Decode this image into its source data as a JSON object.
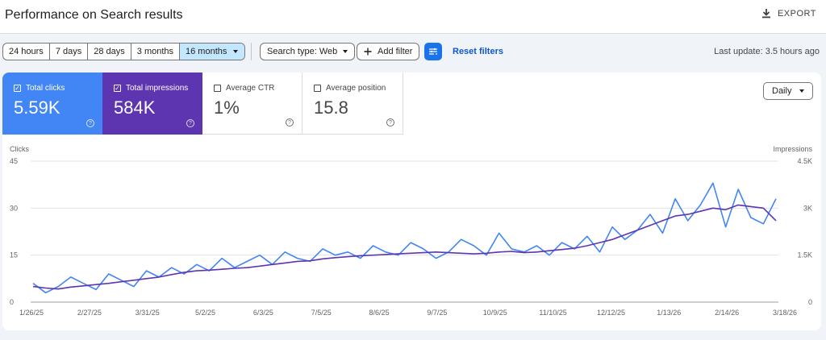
{
  "header": {
    "title": "Performance on Search results",
    "export_label": "EXPORT"
  },
  "date_range": {
    "options": [
      "24 hours",
      "7 days",
      "28 days",
      "3 months",
      "16 months"
    ],
    "selected": "16 months"
  },
  "filters": {
    "search_type": "Search type: Web",
    "add_filter": "Add filter",
    "reset": "Reset filters"
  },
  "last_update": "Last update: 3.5 hours ago",
  "metrics": [
    {
      "label": "Total clicks",
      "value": "5.59K",
      "checked": true,
      "color": "#4285f4"
    },
    {
      "label": "Total impressions",
      "value": "584K",
      "checked": true,
      "color": "#5e35b1"
    },
    {
      "label": "Average CTR",
      "value": "1%",
      "checked": false
    },
    {
      "label": "Average position",
      "value": "15.8",
      "checked": false
    }
  ],
  "granularity": "Daily",
  "chart_data": {
    "type": "line",
    "left_axis": {
      "title": "Clicks",
      "ticks": [
        "45",
        "30",
        "15",
        "0"
      ],
      "range": [
        0,
        45
      ]
    },
    "right_axis": {
      "title": "Impressions",
      "ticks": [
        "4.5K",
        "3K",
        "1.5K",
        "0"
      ],
      "range": [
        0,
        4500
      ]
    },
    "x_labels": [
      "1/26/25",
      "2/27/25",
      "3/31/25",
      "5/2/25",
      "6/3/25",
      "7/5/25",
      "8/6/25",
      "9/7/25",
      "10/9/25",
      "11/10/25",
      "12/12/25",
      "1/13/26",
      "2/14/26",
      "3/18/26"
    ],
    "grid": true,
    "series": [
      {
        "name": "Total clicks",
        "axis": "left",
        "color": "#4285f4",
        "values": [
          6,
          3,
          5,
          8,
          6,
          4,
          9,
          7,
          5,
          10,
          8,
          11,
          9,
          12,
          10,
          14,
          11,
          13,
          15,
          12,
          16,
          14,
          13,
          17,
          15,
          16,
          14,
          18,
          16,
          15,
          19,
          17,
          14,
          16,
          20,
          18,
          15,
          22,
          17,
          16,
          18,
          15,
          19,
          17,
          21,
          16,
          24,
          20,
          23,
          28,
          22,
          33,
          26,
          31,
          38,
          24,
          36,
          27,
          25,
          33
        ]
      },
      {
        "name": "Total impressions",
        "axis": "right",
        "color": "#5e35b1",
        "values": [
          500,
          450,
          420,
          480,
          520,
          560,
          600,
          650,
          700,
          750,
          800,
          880,
          950,
          1000,
          1020,
          1050,
          1080,
          1100,
          1150,
          1200,
          1250,
          1300,
          1320,
          1380,
          1420,
          1450,
          1480,
          1500,
          1520,
          1540,
          1560,
          1580,
          1600,
          1580,
          1560,
          1540,
          1560,
          1600,
          1620,
          1580,
          1600,
          1640,
          1680,
          1720,
          1800,
          1900,
          2000,
          2150,
          2300,
          2450,
          2600,
          2750,
          2800,
          2900,
          3000,
          2950,
          3100,
          3050,
          3000,
          2600
        ]
      }
    ]
  }
}
